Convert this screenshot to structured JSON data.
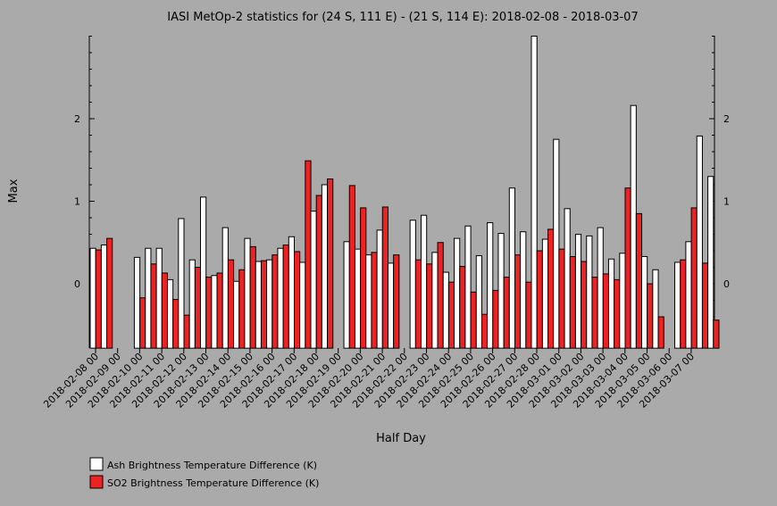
{
  "chart_data": {
    "type": "bar",
    "title": "IASI MetOp-2 statistics for (24 S, 111 E) - (21 S, 114 E): 2018-02-08 - 2018-03-07",
    "xlabel": "Half Day",
    "ylabel": "Max",
    "ylim": [
      -0.78,
      3.0
    ],
    "yticks": [
      0,
      1,
      2
    ],
    "grid": false,
    "legend_position": "bottom-left",
    "tick_labels": [
      "2018-02-08 00",
      "2018-02-09 00",
      "2018-02-10 00",
      "2018-02-11 00",
      "2018-02-12 00",
      "2018-02-13 00",
      "2018-02-14 00",
      "2018-02-15 00",
      "2018-02-16 00",
      "2018-02-17 00",
      "2018-02-18 00",
      "2018-02-19 00",
      "2018-02-20 00",
      "2018-02-21 00",
      "2018-02-22 00",
      "2018-02-23 00",
      "2018-02-24 00",
      "2018-02-25 00",
      "2018-02-26 00",
      "2018-02-27 00",
      "2018-02-28 00",
      "2018-03-01 00",
      "2018-03-02 00",
      "2018-03-03 00",
      "2018-03-04 00",
      "2018-03-05 00",
      "2018-03-06 00",
      "2018-03-07 00"
    ],
    "series": [
      {
        "name": "Ash Brightness Temperature Difference (K)",
        "color": "#ffffff",
        "values": [
          0.43,
          0.47,
          null,
          null,
          0.32,
          0.43,
          0.43,
          0.05,
          0.79,
          0.29,
          1.05,
          0.1,
          0.68,
          0.03,
          0.55,
          0.27,
          0.29,
          0.43,
          0.57,
          0.26,
          0.88,
          1.2,
          null,
          0.51,
          0.42,
          0.35,
          0.65,
          0.25,
          null,
          0.77,
          0.83,
          0.38,
          0.14,
          0.55,
          0.7,
          0.34,
          0.74,
          0.61,
          1.16,
          0.63,
          3.0,
          0.54,
          1.75,
          0.91,
          0.6,
          0.58,
          0.68,
          0.3,
          0.37,
          2.16,
          0.33,
          0.17,
          null,
          0.26,
          0.51,
          1.79,
          1.3
        ]
      },
      {
        "name": "SO2 Brightness Temperature Difference (K)",
        "color": "#ee2222",
        "values": [
          0.41,
          0.55,
          null,
          null,
          -0.17,
          0.24,
          0.13,
          -0.19,
          -0.38,
          0.2,
          0.08,
          0.13,
          0.29,
          0.17,
          0.45,
          0.28,
          0.35,
          0.47,
          0.39,
          1.49,
          1.07,
          1.27,
          null,
          1.19,
          0.92,
          0.38,
          0.93,
          0.35,
          null,
          0.29,
          0.24,
          0.5,
          0.02,
          0.21,
          -0.1,
          -0.37,
          -0.08,
          0.08,
          0.35,
          0.02,
          0.4,
          0.66,
          0.42,
          0.33,
          0.27,
          0.08,
          0.12,
          0.05,
          1.16,
          0.85,
          0.0,
          -0.4,
          null,
          0.29,
          0.92,
          0.25,
          -0.44
        ]
      }
    ]
  }
}
